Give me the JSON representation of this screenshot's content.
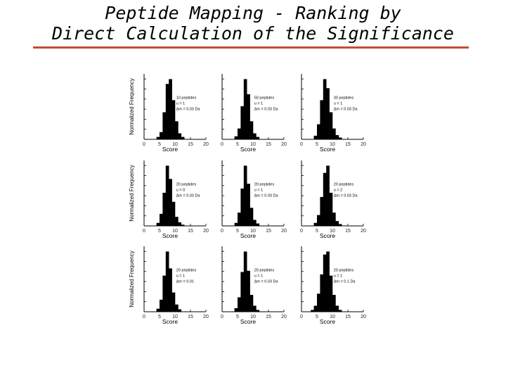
{
  "slide": {
    "title_line1": "Peptide Mapping - Ranking by",
    "title_line2": "Direct Calculation of the Significance"
  },
  "colors": {
    "rule": "#c0502e",
    "bars": "#000000",
    "axes": "#000000"
  },
  "chart_data": [
    {
      "type": "bar",
      "xlabel": "Score",
      "ylabel": "Normalized Frequency",
      "xticks": [
        "0",
        "5",
        "10",
        "15",
        "20"
      ],
      "xlim": [
        0,
        20
      ],
      "annotation": [
        "10 peptides",
        "u = 1",
        "Δm = 0.03 Da"
      ],
      "bins": [
        4,
        5,
        6,
        7,
        8,
        9,
        10,
        11,
        12
      ],
      "values": [
        0.04,
        0.12,
        0.45,
        0.92,
        1.0,
        0.65,
        0.3,
        0.1,
        0.04
      ]
    },
    {
      "type": "bar",
      "xlabel": "Score",
      "ylabel": "",
      "xticks": [
        "0",
        "5",
        "10",
        "15",
        "20"
      ],
      "xlim": [
        0,
        20
      ],
      "annotation": [
        "50 peptides",
        "u = 1",
        "Δm = 0.03 Da"
      ],
      "bins": [
        4,
        5,
        6,
        7,
        8,
        9,
        10,
        11
      ],
      "values": [
        0.05,
        0.18,
        0.55,
        1.0,
        0.75,
        0.3,
        0.1,
        0.04
      ]
    },
    {
      "type": "bar",
      "xlabel": "Score",
      "ylabel": "",
      "xticks": [
        "0",
        "5",
        "10",
        "15",
        "20"
      ],
      "xlim": [
        0,
        20
      ],
      "annotation": [
        "30 peptides",
        "u = 1",
        "Δm = 0.03 Da"
      ],
      "bins": [
        4,
        5,
        6,
        7,
        8,
        9,
        10,
        11,
        12
      ],
      "values": [
        0.06,
        0.25,
        0.65,
        1.0,
        0.85,
        0.45,
        0.18,
        0.07,
        0.03
      ]
    },
    {
      "type": "bar",
      "xlabel": "Score",
      "ylabel": "Normalized Frequency",
      "xticks": [
        "0",
        "5",
        "10",
        "15",
        "20"
      ],
      "xlim": [
        0,
        20
      ],
      "annotation": [
        "20 peptides",
        "u = 0",
        "Δm = 0.03 Da"
      ],
      "bins": [
        4,
        5,
        6,
        7,
        8,
        9,
        10,
        11,
        12
      ],
      "values": [
        0.05,
        0.2,
        0.55,
        1.0,
        0.78,
        0.4,
        0.15,
        0.06,
        0.02
      ]
    },
    {
      "type": "bar",
      "xlabel": "Score",
      "ylabel": "",
      "xticks": [
        "0",
        "5",
        "10",
        "15",
        "20"
      ],
      "xlim": [
        0,
        20
      ],
      "annotation": [
        "20 peptides",
        "u = 1",
        "Δm = 0.03 Da"
      ],
      "bins": [
        4,
        5,
        6,
        7,
        8,
        9,
        10,
        11
      ],
      "values": [
        0.05,
        0.22,
        0.62,
        1.0,
        0.7,
        0.3,
        0.1,
        0.04
      ]
    },
    {
      "type": "bar",
      "xlabel": "Score",
      "ylabel": "",
      "xticks": [
        "0",
        "5",
        "10",
        "15",
        "20"
      ],
      "xlim": [
        0,
        20
      ],
      "annotation": [
        "20 peptides",
        "u = 2",
        "Δm = 0.03 Da"
      ],
      "bins": [
        4,
        5,
        6,
        7,
        8,
        9,
        10,
        11,
        12
      ],
      "values": [
        0.05,
        0.18,
        0.48,
        0.88,
        1.0,
        0.55,
        0.22,
        0.08,
        0.03
      ]
    },
    {
      "type": "bar",
      "xlabel": "Score",
      "ylabel": "Normalized Frequency",
      "xticks": [
        "0",
        "5",
        "10",
        "15",
        "20"
      ],
      "xlim": [
        0,
        20
      ],
      "annotation": [
        "20 peptides",
        "u = 1",
        "Δm = 0.01"
      ],
      "bins": [
        4,
        5,
        6,
        7,
        8,
        9,
        10,
        11
      ],
      "values": [
        0.05,
        0.2,
        0.6,
        1.0,
        0.72,
        0.32,
        0.12,
        0.04
      ]
    },
    {
      "type": "bar",
      "xlabel": "Score",
      "ylabel": "",
      "xticks": [
        "0",
        "5",
        "10",
        "15",
        "20"
      ],
      "xlim": [
        0,
        20
      ],
      "annotation": [
        "20 peptides",
        "u = 1",
        "Δm = 0.03 Da"
      ],
      "bins": [
        4,
        5,
        6,
        7,
        8,
        9,
        10,
        11
      ],
      "values": [
        0.06,
        0.24,
        0.66,
        1.0,
        0.68,
        0.28,
        0.1,
        0.03
      ]
    },
    {
      "type": "bar",
      "xlabel": "Score",
      "ylabel": "",
      "xticks": [
        "0",
        "5",
        "10",
        "15",
        "20"
      ],
      "xlim": [
        0,
        20
      ],
      "annotation": [
        "20 peptides",
        "u = 1",
        "Δm = 0.1 Da"
      ],
      "bins": [
        3,
        4,
        5,
        6,
        7,
        8,
        9,
        10,
        11,
        12
      ],
      "values": [
        0.03,
        0.1,
        0.3,
        0.62,
        0.95,
        1.0,
        0.6,
        0.28,
        0.1,
        0.03
      ]
    }
  ]
}
